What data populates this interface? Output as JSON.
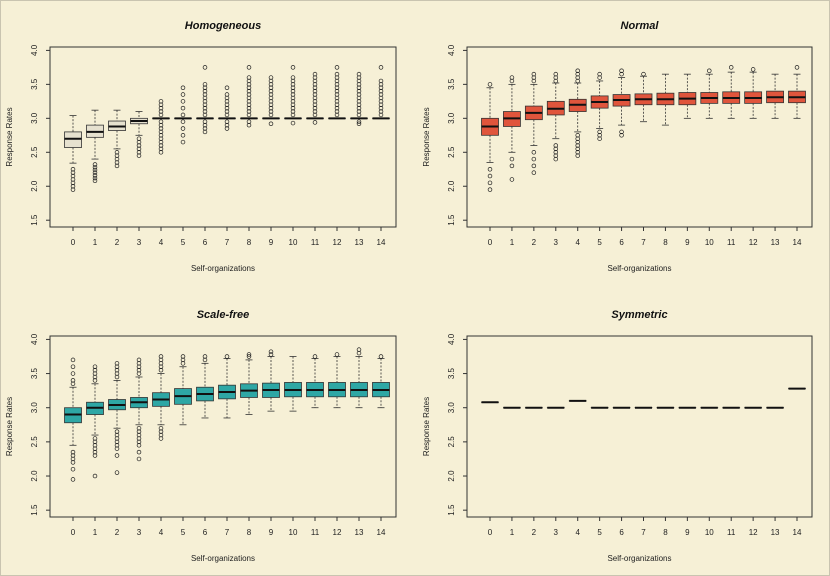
{
  "colors": {
    "background": "#f6f0d6",
    "border": "#c9c4b0",
    "homogeneous_fill": "#e6e1cf",
    "normal_fill": "#e0553c",
    "scale_free_fill": "#2ea7a5",
    "symmetric_fill": "#ffffff",
    "stroke": "#222222"
  },
  "chart_data": [
    {
      "type": "boxplot",
      "title": "Homogeneous",
      "xlabel": "Self-organizations",
      "ylabel": "Response Rates",
      "categories": [
        "0",
        "1",
        "2",
        "3",
        "4",
        "5",
        "6",
        "7",
        "8",
        "9",
        "10",
        "11",
        "12",
        "13",
        "14"
      ],
      "yticks": [
        "1.5",
        "2.0",
        "2.5",
        "3.0",
        "3.5",
        "4.0"
      ],
      "ylim": [
        1.4,
        4.05
      ],
      "fill_key": "homogeneous_fill",
      "boxes": [
        {
          "lo": 2.34,
          "q1": 2.57,
          "med": 2.7,
          "q3": 2.8,
          "hi": 3.04,
          "out": [
            1.95,
            2.0,
            2.05,
            2.1,
            2.15,
            2.2,
            2.25
          ]
        },
        {
          "lo": 2.4,
          "q1": 2.72,
          "med": 2.8,
          "q3": 2.9,
          "hi": 3.12,
          "out": [
            2.08,
            2.12,
            2.16,
            2.2,
            2.24,
            2.28,
            2.32
          ]
        },
        {
          "lo": 2.55,
          "q1": 2.82,
          "med": 2.88,
          "q3": 2.96,
          "hi": 3.12,
          "out": [
            2.3,
            2.35,
            2.4,
            2.45,
            2.5
          ]
        },
        {
          "lo": 2.75,
          "q1": 2.92,
          "med": 2.96,
          "q3": 3.0,
          "hi": 3.1,
          "out": [
            2.45,
            2.5,
            2.55,
            2.6,
            2.65,
            2.7
          ]
        },
        {
          "lo": 3.0,
          "q1": 3.0,
          "med": 3.0,
          "q3": 3.0,
          "hi": 3.0,
          "out": [
            2.5,
            2.55,
            2.6,
            2.65,
            2.7,
            2.75,
            2.8,
            2.85,
            2.9,
            2.95,
            3.05,
            3.1,
            3.15,
            3.2,
            3.25
          ]
        },
        {
          "lo": 3.0,
          "q1": 3.0,
          "med": 3.0,
          "q3": 3.0,
          "hi": 3.0,
          "out": [
            2.65,
            2.75,
            2.85,
            2.95,
            3.05,
            3.15,
            3.25,
            3.35,
            3.45
          ]
        },
        {
          "lo": 3.0,
          "q1": 3.0,
          "med": 3.0,
          "q3": 3.0,
          "hi": 3.0,
          "out": [
            2.8,
            2.85,
            2.9,
            2.95,
            3.05,
            3.1,
            3.15,
            3.2,
            3.25,
            3.3,
            3.35,
            3.4,
            3.45,
            3.5,
            3.75
          ]
        },
        {
          "lo": 3.0,
          "q1": 3.0,
          "med": 3.0,
          "q3": 3.0,
          "hi": 3.0,
          "out": [
            2.85,
            2.9,
            2.95,
            3.05,
            3.1,
            3.15,
            3.2,
            3.25,
            3.3,
            3.35,
            3.45
          ]
        },
        {
          "lo": 3.0,
          "q1": 3.0,
          "med": 3.0,
          "q3": 3.0,
          "hi": 3.0,
          "out": [
            2.9,
            2.95,
            3.05,
            3.1,
            3.15,
            3.2,
            3.25,
            3.3,
            3.35,
            3.4,
            3.45,
            3.5,
            3.55,
            3.6,
            3.75
          ]
        },
        {
          "lo": 3.0,
          "q1": 3.0,
          "med": 3.0,
          "q3": 3.0,
          "hi": 3.0,
          "out": [
            2.92,
            3.05,
            3.1,
            3.15,
            3.2,
            3.25,
            3.3,
            3.35,
            3.4,
            3.45,
            3.5,
            3.55,
            3.6
          ]
        },
        {
          "lo": 3.0,
          "q1": 3.0,
          "med": 3.0,
          "q3": 3.0,
          "hi": 3.0,
          "out": [
            2.93,
            3.05,
            3.1,
            3.15,
            3.2,
            3.25,
            3.3,
            3.35,
            3.4,
            3.45,
            3.5,
            3.55,
            3.6,
            3.75
          ]
        },
        {
          "lo": 3.0,
          "q1": 3.0,
          "med": 3.0,
          "q3": 3.0,
          "hi": 3.0,
          "out": [
            2.94,
            3.05,
            3.1,
            3.15,
            3.2,
            3.25,
            3.3,
            3.35,
            3.4,
            3.45,
            3.5,
            3.55,
            3.6,
            3.65
          ]
        },
        {
          "lo": 3.0,
          "q1": 3.0,
          "med": 3.0,
          "q3": 3.0,
          "hi": 3.0,
          "out": [
            3.05,
            3.1,
            3.15,
            3.2,
            3.25,
            3.3,
            3.35,
            3.4,
            3.45,
            3.5,
            3.55,
            3.6,
            3.65,
            3.75
          ]
        },
        {
          "lo": 3.0,
          "q1": 3.0,
          "med": 3.0,
          "q3": 3.0,
          "hi": 3.0,
          "out": [
            2.92,
            2.95,
            3.05,
            3.1,
            3.15,
            3.2,
            3.25,
            3.3,
            3.35,
            3.4,
            3.45,
            3.5,
            3.55,
            3.6,
            3.65
          ]
        },
        {
          "lo": 3.0,
          "q1": 3.0,
          "med": 3.0,
          "q3": 3.0,
          "hi": 3.0,
          "out": [
            3.05,
            3.1,
            3.15,
            3.2,
            3.25,
            3.3,
            3.35,
            3.4,
            3.45,
            3.5,
            3.55,
            3.75
          ]
        }
      ]
    },
    {
      "type": "boxplot",
      "title": "Normal",
      "xlabel": "Self-organizations",
      "ylabel": "Response Rates",
      "categories": [
        "0",
        "1",
        "2",
        "3",
        "4",
        "5",
        "6",
        "7",
        "8",
        "9",
        "10",
        "11",
        "12",
        "13",
        "14"
      ],
      "yticks": [
        "1.5",
        "2.0",
        "2.5",
        "3.0",
        "3.5",
        "4.0"
      ],
      "ylim": [
        1.4,
        4.05
      ],
      "fill_key": "normal_fill",
      "boxes": [
        {
          "lo": 2.35,
          "q1": 2.75,
          "med": 2.88,
          "q3": 3.0,
          "hi": 3.45,
          "out": [
            1.95,
            2.05,
            2.15,
            2.25,
            3.5
          ]
        },
        {
          "lo": 2.5,
          "q1": 2.88,
          "med": 3.0,
          "q3": 3.1,
          "hi": 3.5,
          "out": [
            2.1,
            2.3,
            2.4,
            3.55,
            3.6
          ]
        },
        {
          "lo": 2.6,
          "q1": 2.98,
          "med": 3.08,
          "q3": 3.18,
          "hi": 3.5,
          "out": [
            2.2,
            2.3,
            2.4,
            2.5,
            3.55,
            3.6,
            3.65
          ]
        },
        {
          "lo": 2.7,
          "q1": 3.05,
          "med": 3.14,
          "q3": 3.25,
          "hi": 3.52,
          "out": [
            2.4,
            2.45,
            2.5,
            2.55,
            2.6,
            3.55,
            3.6,
            3.65
          ]
        },
        {
          "lo": 2.8,
          "q1": 3.1,
          "med": 3.2,
          "q3": 3.28,
          "hi": 3.52,
          "out": [
            2.45,
            2.5,
            2.55,
            2.6,
            2.65,
            2.7,
            2.75,
            3.55,
            3.6,
            3.65,
            3.7
          ]
        },
        {
          "lo": 2.85,
          "q1": 3.15,
          "med": 3.24,
          "q3": 3.33,
          "hi": 3.55,
          "out": [
            2.7,
            2.75,
            2.8,
            3.6,
            3.65
          ]
        },
        {
          "lo": 2.9,
          "q1": 3.18,
          "med": 3.27,
          "q3": 3.35,
          "hi": 3.6,
          "out": [
            2.75,
            2.8,
            3.65,
            3.7
          ]
        },
        {
          "lo": 2.95,
          "q1": 3.2,
          "med": 3.28,
          "q3": 3.36,
          "hi": 3.62,
          "out": [
            3.65
          ]
        },
        {
          "lo": 2.9,
          "q1": 3.2,
          "med": 3.28,
          "q3": 3.37,
          "hi": 3.65,
          "out": []
        },
        {
          "lo": 3.0,
          "q1": 3.2,
          "med": 3.29,
          "q3": 3.38,
          "hi": 3.65,
          "out": []
        },
        {
          "lo": 3.0,
          "q1": 3.22,
          "med": 3.3,
          "q3": 3.38,
          "hi": 3.65,
          "out": [
            3.7
          ]
        },
        {
          "lo": 3.0,
          "q1": 3.22,
          "med": 3.3,
          "q3": 3.39,
          "hi": 3.68,
          "out": [
            3.75
          ]
        },
        {
          "lo": 3.0,
          "q1": 3.22,
          "med": 3.3,
          "q3": 3.39,
          "hi": 3.68,
          "out": [
            3.72
          ]
        },
        {
          "lo": 3.0,
          "q1": 3.23,
          "med": 3.31,
          "q3": 3.4,
          "hi": 3.65,
          "out": []
        },
        {
          "lo": 3.0,
          "q1": 3.23,
          "med": 3.31,
          "q3": 3.4,
          "hi": 3.65,
          "out": [
            3.75
          ]
        }
      ]
    },
    {
      "type": "boxplot",
      "title": "Scale-free",
      "xlabel": "Self-organizations",
      "ylabel": "Response Rates",
      "categories": [
        "0",
        "1",
        "2",
        "3",
        "4",
        "5",
        "6",
        "7",
        "8",
        "9",
        "10",
        "11",
        "12",
        "13",
        "14"
      ],
      "yticks": [
        "1.5",
        "2.0",
        "2.5",
        "3.0",
        "3.5",
        "4.0"
      ],
      "ylim": [
        1.4,
        4.05
      ],
      "fill_key": "scale_free_fill",
      "boxes": [
        {
          "lo": 2.45,
          "q1": 2.78,
          "med": 2.9,
          "q3": 3.0,
          "hi": 3.3,
          "out": [
            1.95,
            2.1,
            2.2,
            2.25,
            2.3,
            2.35,
            3.35,
            3.4,
            3.5,
            3.6,
            3.7
          ]
        },
        {
          "lo": 2.6,
          "q1": 2.9,
          "med": 3.0,
          "q3": 3.08,
          "hi": 3.35,
          "out": [
            2.0,
            2.3,
            2.35,
            2.4,
            2.45,
            2.5,
            2.55,
            3.4,
            3.45,
            3.5,
            3.55,
            3.6
          ]
        },
        {
          "lo": 2.7,
          "q1": 2.97,
          "med": 3.04,
          "q3": 3.12,
          "hi": 3.4,
          "out": [
            2.05,
            2.3,
            2.4,
            2.45,
            2.5,
            2.55,
            2.6,
            2.65,
            3.45,
            3.5,
            3.55,
            3.6,
            3.65
          ]
        },
        {
          "lo": 2.75,
          "q1": 3.0,
          "med": 3.08,
          "q3": 3.15,
          "hi": 3.45,
          "out": [
            2.25,
            2.35,
            2.45,
            2.5,
            2.55,
            2.6,
            2.65,
            2.7,
            3.5,
            3.55,
            3.6,
            3.65,
            3.7
          ]
        },
        {
          "lo": 2.75,
          "q1": 3.02,
          "med": 3.12,
          "q3": 3.22,
          "hi": 3.5,
          "out": [
            2.55,
            2.6,
            2.65,
            2.7,
            3.55,
            3.6,
            3.65,
            3.7,
            3.75
          ]
        },
        {
          "lo": 2.75,
          "q1": 3.05,
          "med": 3.17,
          "q3": 3.28,
          "hi": 3.6,
          "out": [
            3.65,
            3.7,
            3.75
          ]
        },
        {
          "lo": 2.85,
          "q1": 3.1,
          "med": 3.2,
          "q3": 3.3,
          "hi": 3.65,
          "out": [
            3.7,
            3.75
          ]
        },
        {
          "lo": 2.85,
          "q1": 3.13,
          "med": 3.23,
          "q3": 3.33,
          "hi": 3.72,
          "out": [
            3.75
          ]
        },
        {
          "lo": 2.9,
          "q1": 3.15,
          "med": 3.25,
          "q3": 3.35,
          "hi": 3.7,
          "out": [
            3.75,
            3.78
          ]
        },
        {
          "lo": 2.95,
          "q1": 3.15,
          "med": 3.26,
          "q3": 3.36,
          "hi": 3.75,
          "out": [
            3.78,
            3.82
          ]
        },
        {
          "lo": 2.95,
          "q1": 3.16,
          "med": 3.26,
          "q3": 3.37,
          "hi": 3.75,
          "out": []
        },
        {
          "lo": 3.0,
          "q1": 3.16,
          "med": 3.26,
          "q3": 3.37,
          "hi": 3.72,
          "out": [
            3.75
          ]
        },
        {
          "lo": 3.0,
          "q1": 3.16,
          "med": 3.26,
          "q3": 3.37,
          "hi": 3.75,
          "out": [
            3.78
          ]
        },
        {
          "lo": 3.0,
          "q1": 3.16,
          "med": 3.26,
          "q3": 3.37,
          "hi": 3.75,
          "out": [
            3.8,
            3.85
          ]
        },
        {
          "lo": 3.0,
          "q1": 3.16,
          "med": 3.26,
          "q3": 3.37,
          "hi": 3.72,
          "out": [
            3.75
          ]
        }
      ]
    },
    {
      "type": "boxplot",
      "title": "Symmetric",
      "xlabel": "Self-organizations",
      "ylabel": "Response Rates",
      "categories": [
        "0",
        "1",
        "2",
        "3",
        "4",
        "5",
        "6",
        "7",
        "8",
        "9",
        "10",
        "11",
        "12",
        "13",
        "14"
      ],
      "yticks": [
        "1.5",
        "2.0",
        "2.5",
        "3.0",
        "3.5",
        "4.0"
      ],
      "ylim": [
        1.4,
        4.05
      ],
      "fill_key": "symmetric_fill",
      "boxes": [
        {
          "lo": 3.08,
          "q1": 3.08,
          "med": 3.08,
          "q3": 3.08,
          "hi": 3.08,
          "out": []
        },
        {
          "lo": 3.0,
          "q1": 3.0,
          "med": 3.0,
          "q3": 3.0,
          "hi": 3.0,
          "out": []
        },
        {
          "lo": 3.0,
          "q1": 3.0,
          "med": 3.0,
          "q3": 3.0,
          "hi": 3.0,
          "out": []
        },
        {
          "lo": 3.0,
          "q1": 3.0,
          "med": 3.0,
          "q3": 3.0,
          "hi": 3.0,
          "out": []
        },
        {
          "lo": 3.1,
          "q1": 3.1,
          "med": 3.1,
          "q3": 3.1,
          "hi": 3.1,
          "out": []
        },
        {
          "lo": 3.0,
          "q1": 3.0,
          "med": 3.0,
          "q3": 3.0,
          "hi": 3.0,
          "out": []
        },
        {
          "lo": 3.0,
          "q1": 3.0,
          "med": 3.0,
          "q3": 3.0,
          "hi": 3.0,
          "out": []
        },
        {
          "lo": 3.0,
          "q1": 3.0,
          "med": 3.0,
          "q3": 3.0,
          "hi": 3.0,
          "out": []
        },
        {
          "lo": 3.0,
          "q1": 3.0,
          "med": 3.0,
          "q3": 3.0,
          "hi": 3.0,
          "out": []
        },
        {
          "lo": 3.0,
          "q1": 3.0,
          "med": 3.0,
          "q3": 3.0,
          "hi": 3.0,
          "out": []
        },
        {
          "lo": 3.0,
          "q1": 3.0,
          "med": 3.0,
          "q3": 3.0,
          "hi": 3.0,
          "out": []
        },
        {
          "lo": 3.0,
          "q1": 3.0,
          "med": 3.0,
          "q3": 3.0,
          "hi": 3.0,
          "out": []
        },
        {
          "lo": 3.0,
          "q1": 3.0,
          "med": 3.0,
          "q3": 3.0,
          "hi": 3.0,
          "out": []
        },
        {
          "lo": 3.0,
          "q1": 3.0,
          "med": 3.0,
          "q3": 3.0,
          "hi": 3.0,
          "out": []
        },
        {
          "lo": 3.28,
          "q1": 3.28,
          "med": 3.28,
          "q3": 3.28,
          "hi": 3.28,
          "out": []
        }
      ]
    }
  ]
}
